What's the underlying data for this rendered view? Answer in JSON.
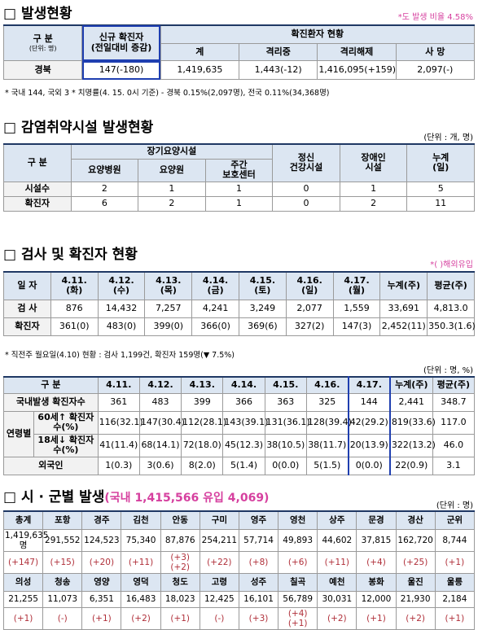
{
  "section1": {
    "title": "□ 발생현황",
    "note": "*도 발생 비율 4.58%",
    "table": {
      "h_gubun": "구 분",
      "h_unit": "(단위: 명)",
      "h_new": "신규 확진자\n(전일대비 증감)",
      "h_status": "확진환자 현황",
      "h_sub": [
        "계",
        "격리중",
        "격리해제",
        "사 망"
      ],
      "row": [
        "경북",
        "147(-180)",
        "1,419,635",
        "1,443(-12)",
        "1,416,095(+159)",
        "2,097(-)"
      ]
    },
    "footnote": "* 국내 144, 국외 3  * 치명률(4. 15. 0시 기준) - 경북 0.15%(2,097명), 전국 0.11%(34,368명)"
  },
  "section2": {
    "title": "□ 감염취약시설 발생현황",
    "unit": "(단위 : 개, 명)",
    "table": {
      "h_gubun": "구 분",
      "h_group": "장기요양시설",
      "h_sub": [
        "요양병원",
        "요양원",
        "주간\n보호센터"
      ],
      "h_other": [
        "정신\n건강시설",
        "장애인\n시설",
        "누계\n(일)"
      ],
      "rows": [
        [
          "시설수",
          "2",
          "1",
          "1",
          "0",
          "1",
          "5"
        ],
        [
          "확진자",
          "6",
          "2",
          "1",
          "0",
          "2",
          "11"
        ]
      ]
    }
  },
  "section3": {
    "title": "□ 검사 및 확진자 현황",
    "note": "*( )해외유입",
    "table1": {
      "header": [
        "일 자",
        "4.11.\n(화)",
        "4.12.\n(수)",
        "4.13.\n(목)",
        "4.14.\n(금)",
        "4.15.\n(토)",
        "4.16.\n(일)",
        "4.17.\n(월)",
        "누계(주)",
        "평균(주)"
      ],
      "rows": [
        [
          "검 사",
          "876",
          "14,432",
          "7,257",
          "4,241",
          "3,249",
          "2,077",
          "1,559",
          "33,691",
          "4,813.0"
        ],
        [
          "확진자",
          "361(0)",
          "483(0)",
          "399(0)",
          "366(0)",
          "369(6)",
          "327(2)",
          "147(3)",
          "2,452(11)",
          "350.3(1.6)"
        ]
      ]
    },
    "footnote": "* 직전주 월요일(4.10) 현황 : 검사 1,199건, 확진자 159명(▼ 7.5%)",
    "unit": "(단위 : 명, %)",
    "table2": {
      "header": [
        "구 분",
        "4.11.",
        "4.12.",
        "4.13.",
        "4.14.",
        "4.15.",
        "4.16.",
        "4.17.",
        "누계(주)",
        "평균(주)"
      ],
      "domestic": [
        "국내발생 확진자수",
        "361",
        "483",
        "399",
        "366",
        "363",
        "325",
        "144",
        "2,441",
        "348.7"
      ],
      "age_label": "연령별",
      "age_rows": [
        [
          "60세↑ 확진자수(%)",
          "116(32.1)",
          "147(30.4)",
          "112(28.1)",
          "143(39.1)",
          "131(36.1)",
          "128(39.4)",
          "42(29.2)",
          "819(33.6)",
          "117.0"
        ],
        [
          "18세↓ 확진자수(%)",
          "41(11.4)",
          "68(14.1)",
          "72(18.0)",
          "45(12.3)",
          "38(10.5)",
          "38(11.7)",
          "20(13.9)",
          "322(13.2)",
          "46.0"
        ]
      ],
      "foreign": [
        "외국인",
        "1(0.3)",
        "3(0.6)",
        "8(2.0)",
        "5(1.4)",
        "0(0.0)",
        "5(1.5)",
        "0(0.0)",
        "22(0.9)",
        "3.1"
      ]
    }
  },
  "section4": {
    "title": "□ 시 · 군별 발생",
    "subtitle": "(국내 1,415,566 유입 4,069)",
    "unit": "(단위 : 명)",
    "groups": [
      {
        "names": [
          "총계",
          "포항",
          "경주",
          "김천",
          "안동",
          "구미",
          "영주",
          "영천",
          "상주",
          "문경",
          "경산",
          "군위"
        ],
        "values": [
          "1,419,635명",
          "291,552",
          "124,523",
          "75,340",
          "87,876",
          "254,211",
          "57,714",
          "49,893",
          "44,602",
          "37,815",
          "162,720",
          "8,744"
        ],
        "deltas": [
          "(+147)",
          "(+15)",
          "(+20)",
          "(+11)",
          "(+3)(+2)",
          "(+22)",
          "(+8)",
          "(+6)",
          "(+11)",
          "(+4)",
          "(+25)",
          "(+1)"
        ]
      },
      {
        "names": [
          "의성",
          "청송",
          "영양",
          "영덕",
          "청도",
          "고령",
          "성주",
          "칠곡",
          "예천",
          "봉화",
          "울진",
          "울릉"
        ],
        "values": [
          "21,255",
          "11,073",
          "6,351",
          "16,483",
          "18,023",
          "12,425",
          "16,101",
          "56,789",
          "30,031",
          "12,000",
          "21,930",
          "2,184"
        ],
        "deltas": [
          "(+1)",
          "(-)",
          "(+1)",
          "(+2)",
          "(+1)",
          "(-)",
          "(+3)",
          "(+4)(+1)",
          "(+2)",
          "(+1)",
          "(+2)",
          "(+1)"
        ]
      }
    ]
  }
}
